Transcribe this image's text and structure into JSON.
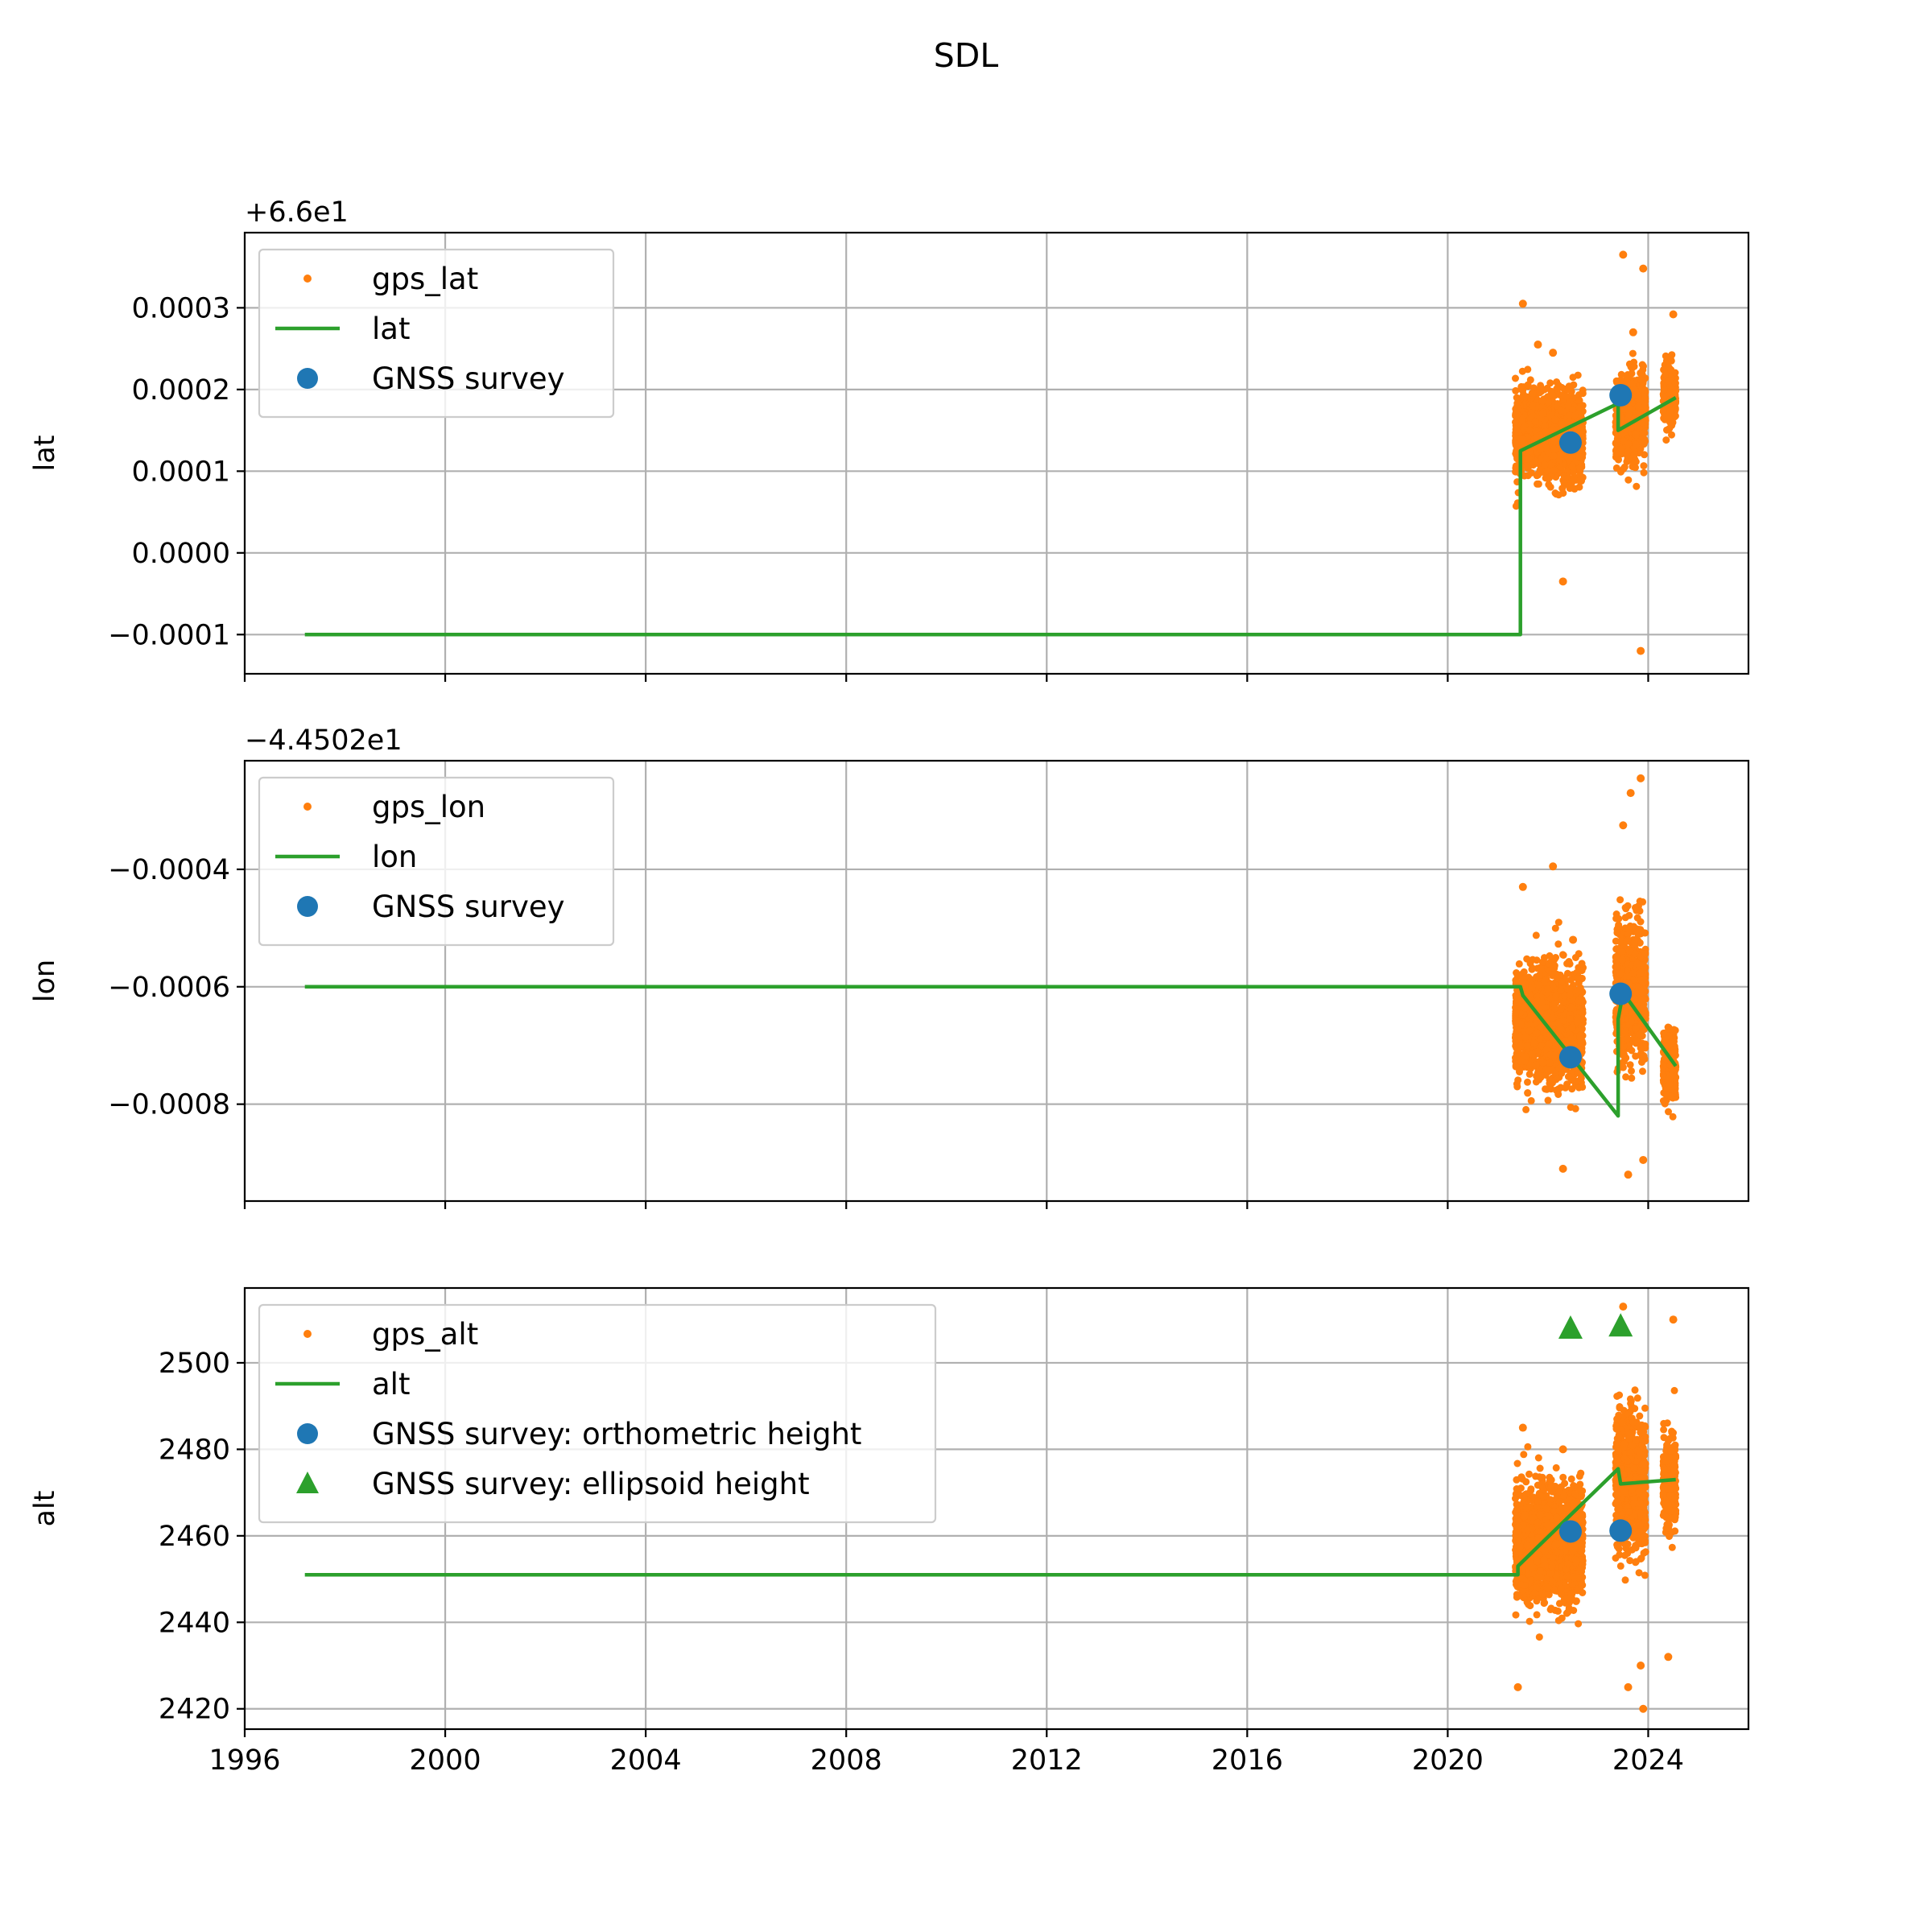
{
  "title": "SDL",
  "colors": {
    "gps": "#ff7f0e",
    "model": "#2ca02c",
    "survey": "#1f77b4",
    "ellipsoid": "#2ca02c",
    "grid": "#b0b0b0"
  },
  "chart_data": [
    {
      "type": "scatter",
      "ylabel": "lat",
      "offset_text": "+6.6e1",
      "xlim": [
        1996.0,
        2026.0
      ],
      "ylim": [
        -0.000148,
        0.000392
      ],
      "xticks": [
        1996,
        2000,
        2004,
        2008,
        2012,
        2016,
        2020,
        2024
      ],
      "xtick_labels": [],
      "yticks": [
        -0.0001,
        0.0,
        0.0001,
        0.0002,
        0.0003
      ],
      "ytick_labels": [
        "−0.0001",
        "0.0000",
        "0.0001",
        "0.0002",
        "0.0003"
      ],
      "grid": true,
      "legend": "top-left",
      "series": [
        {
          "name": "gps_lat",
          "kind": "points",
          "color": "#ff7f0e",
          "clusters": [
            {
              "x": [
                2021.35,
                2022.7
              ],
              "center": 0.000145,
              "spread": 6e-05
            },
            {
              "x": [
                2023.35,
                2023.95
              ],
              "center": 0.000165,
              "spread": 6e-05
            },
            {
              "x": [
                2024.3,
                2024.55
              ],
              "center": 0.000195,
              "spread": 4e-05
            }
          ],
          "outliers": [
            [
              2021.5,
              0.000305
            ],
            [
              2022.3,
              -3.5e-05
            ],
            [
              2023.5,
              0.000365
            ],
            [
              2023.9,
              0.000348
            ],
            [
              2023.85,
              -0.00012
            ],
            [
              2024.5,
              0.000292
            ],
            [
              2023.7,
              0.00027
            ],
            [
              2022.1,
              0.000245
            ],
            [
              2021.8,
              0.000255
            ]
          ]
        },
        {
          "name": "lat",
          "kind": "line",
          "color": "#2ca02c",
          "x": [
            1997.2,
            2021.45,
            2021.45,
            2023.4,
            2023.4,
            2024.55
          ],
          "y": [
            -0.0001,
            -0.0001,
            0.000125,
            0.000183,
            0.00015,
            0.00019
          ]
        },
        {
          "name": "GNSS survey",
          "kind": "marker",
          "color": "#1f77b4",
          "x": [
            2022.45,
            2023.45
          ],
          "y": [
            0.000135,
            0.000193
          ]
        }
      ]
    },
    {
      "type": "scatter",
      "ylabel": "lon",
      "offset_text": "−4.4502e1",
      "xlim": [
        1996.0,
        2026.0
      ],
      "ylim": [
        -0.000965,
        -0.000215
      ],
      "xticks": [
        1996,
        2000,
        2004,
        2008,
        2012,
        2016,
        2020,
        2024
      ],
      "xtick_labels": [],
      "yticks": [
        -0.0004,
        -0.0006,
        -0.0008
      ],
      "ytick_labels": [
        "−0.0004",
        "−0.0006",
        "−0.0008"
      ],
      "grid": true,
      "legend": "top-left",
      "series": [
        {
          "name": "gps_lon",
          "kind": "points",
          "color": "#ff7f0e",
          "clusters": [
            {
              "x": [
                2021.35,
                2022.7
              ],
              "center": -0.000665,
              "spread": 0.00011
            },
            {
              "x": [
                2023.35,
                2023.95
              ],
              "center": -0.000605,
              "spread": 0.00013
            },
            {
              "x": [
                2024.3,
                2024.55
              ],
              "center": -0.000735,
              "spread": 7e-05
            }
          ],
          "outliers": [
            [
              2022.1,
              -0.000395
            ],
            [
              2023.85,
              -0.000245
            ],
            [
              2023.65,
              -0.00027
            ],
            [
              2023.5,
              -0.000325
            ],
            [
              2022.3,
              -0.00091
            ],
            [
              2023.6,
              -0.00092
            ],
            [
              2023.9,
              -0.000895
            ],
            [
              2021.5,
              -0.00043
            ],
            [
              2022.5,
              -0.00052
            ]
          ]
        },
        {
          "name": "lon",
          "kind": "line",
          "color": "#2ca02c",
          "x": [
            1997.2,
            2021.45,
            2021.5,
            2023.4,
            2023.4,
            2023.5,
            2024.55
          ],
          "y": [
            -0.0006,
            -0.0006,
            -0.000615,
            -0.00082,
            -0.000655,
            -0.00061,
            -0.000735
          ]
        },
        {
          "name": "GNSS survey",
          "kind": "marker",
          "color": "#1f77b4",
          "x": [
            2022.45,
            2023.45
          ],
          "y": [
            -0.00072,
            -0.000612
          ]
        }
      ]
    },
    {
      "type": "scatter",
      "ylabel": "alt",
      "offset_text": "",
      "xlim": [
        1996.0,
        2026.0
      ],
      "ylim": [
        2415.3,
        2517.3
      ],
      "xticks": [
        1996,
        2000,
        2004,
        2008,
        2012,
        2016,
        2020,
        2024
      ],
      "xtick_labels": [
        "1996",
        "2000",
        "2004",
        "2008",
        "2012",
        "2016",
        "2020",
        "2024"
      ],
      "yticks": [
        2420,
        2440,
        2460,
        2480,
        2500
      ],
      "ytick_labels": [
        "2420",
        "2440",
        "2460",
        "2480",
        "2500"
      ],
      "grid": true,
      "legend": "top-left",
      "series": [
        {
          "name": "gps_alt",
          "kind": "points",
          "color": "#ff7f0e",
          "clusters": [
            {
              "x": [
                2021.35,
                2022.7
              ],
              "center": 2458,
              "spread": 15
            },
            {
              "x": [
                2023.35,
                2023.95
              ],
              "center": 2472,
              "spread": 18
            },
            {
              "x": [
                2024.3,
                2024.55
              ],
              "center": 2472,
              "spread": 12
            }
          ],
          "outliers": [
            [
              2023.5,
              2513
            ],
            [
              2024.5,
              2510
            ],
            [
              2023.9,
              2420
            ],
            [
              2021.4,
              2425
            ],
            [
              2021.5,
              2485
            ],
            [
              2023.6,
              2425
            ],
            [
              2024.4,
              2432
            ],
            [
              2022.3,
              2480
            ],
            [
              2023.85,
              2430
            ]
          ]
        },
        {
          "name": "alt",
          "kind": "line",
          "color": "#2ca02c",
          "x": [
            1997.2,
            2021.4,
            2021.4,
            2023.4,
            2023.45,
            2024.55
          ],
          "y": [
            2451,
            2451,
            2453,
            2475.5,
            2472,
            2473
          ]
        },
        {
          "name": "GNSS survey: orthometric height",
          "kind": "marker",
          "color": "#1f77b4",
          "x": [
            2022.45,
            2023.45
          ],
          "y": [
            2461,
            2461.2
          ]
        },
        {
          "name": "GNSS survey: ellipsoid height",
          "kind": "triangle",
          "color": "#2ca02c",
          "x": [
            2022.45,
            2023.45
          ],
          "y": [
            2508,
            2508.5
          ]
        }
      ]
    }
  ]
}
